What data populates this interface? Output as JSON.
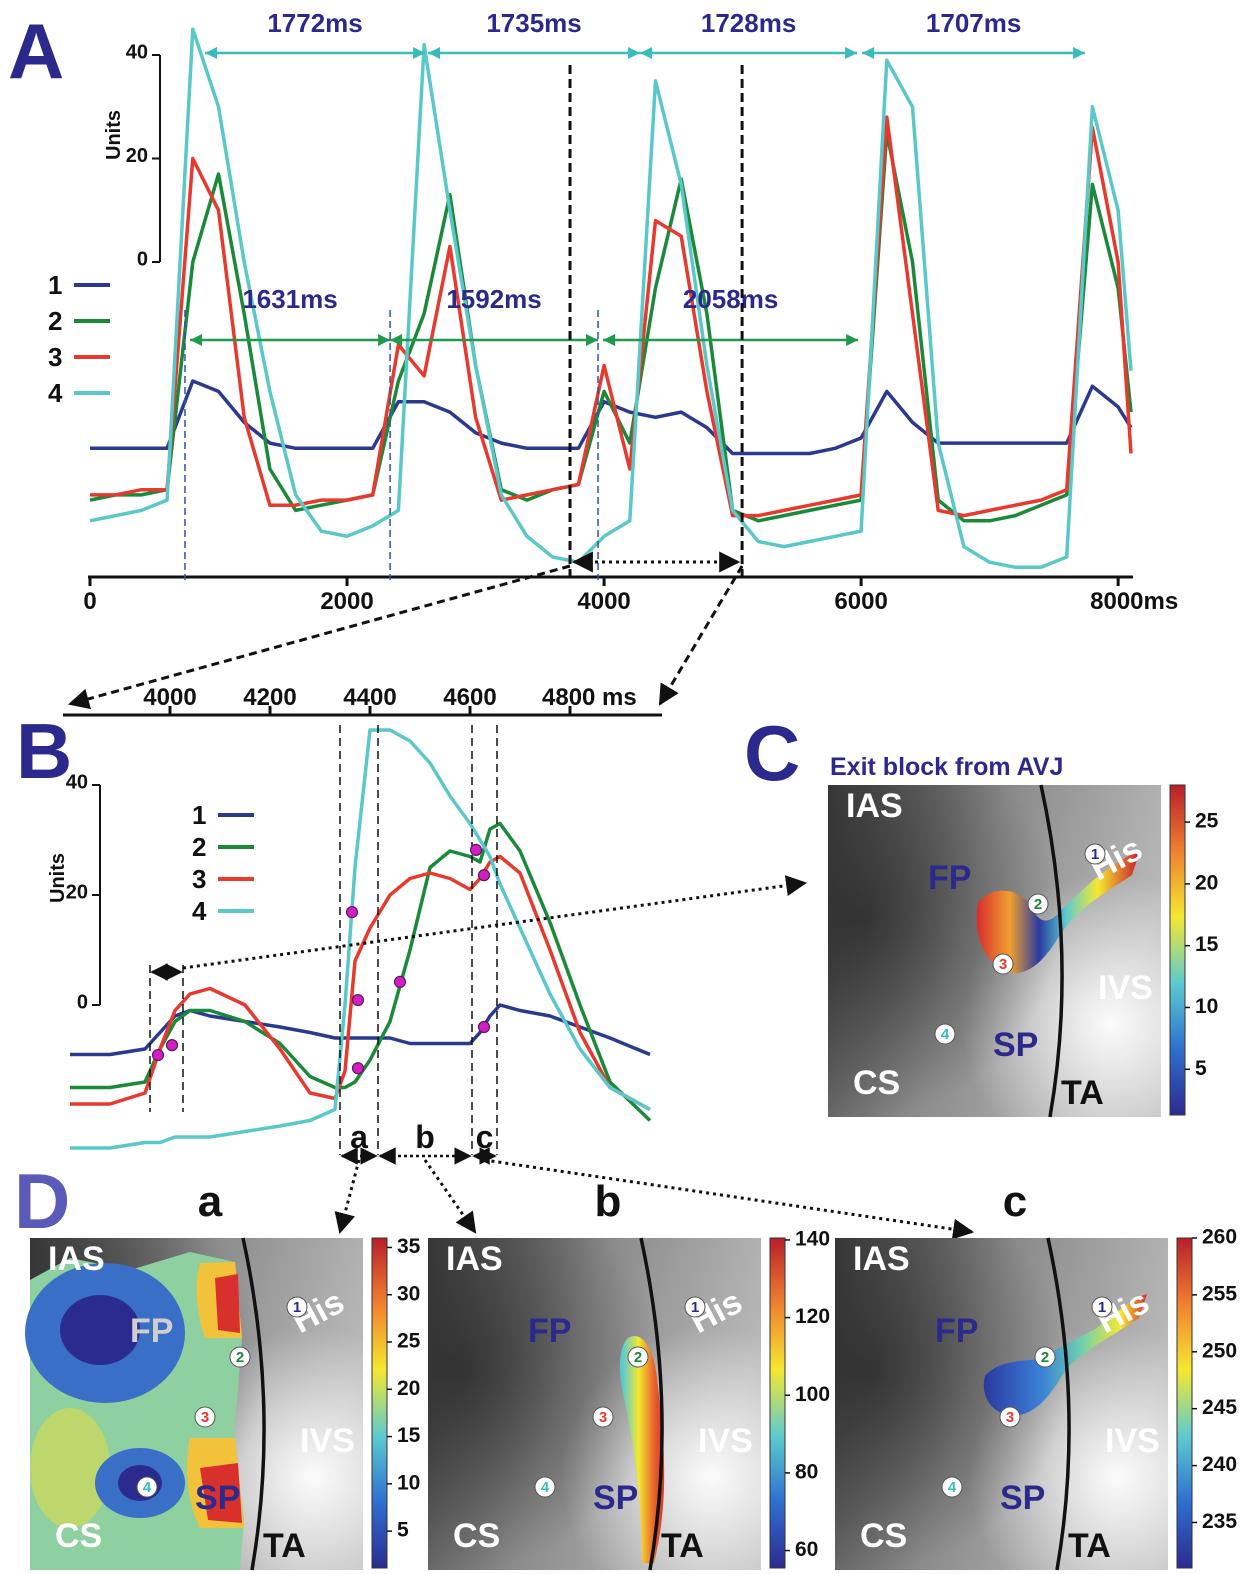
{
  "panel_letters": [
    "A",
    "B",
    "C",
    "D"
  ],
  "chart_data": [
    {
      "type": "line",
      "y_label": "Units",
      "x": [
        0,
        200,
        400,
        600,
        800,
        1000,
        1200,
        1400,
        1600,
        1800,
        2000,
        2200,
        2400,
        2600,
        2800,
        3000,
        3200,
        3400,
        3600,
        3800,
        4000,
        4200,
        4400,
        4600,
        4800,
        5000,
        5200,
        5400,
        5600,
        5800,
        6000,
        6200,
        6400,
        6600,
        6800,
        7000,
        7200,
        7400,
        7600,
        7800,
        8000,
        8100
      ],
      "series": [
        {
          "name": "1",
          "color": "#2b3a8f",
          "values": [
            -36,
            -36,
            -36,
            -36,
            -23,
            -25,
            -31,
            -35,
            -36,
            -36,
            -36,
            -36,
            -27,
            -27,
            -29,
            -33,
            -35,
            -36,
            -36,
            -36,
            -27,
            -29,
            -30,
            -29,
            -32,
            -37,
            -37,
            -37,
            -37,
            -36,
            -34,
            -25,
            -31,
            -35,
            -35,
            -35,
            -35,
            -35,
            -35,
            -24,
            -28,
            -32
          ]
        },
        {
          "name": "2",
          "color": "#1a8a3a",
          "values": [
            -46,
            -45,
            -45,
            -44,
            0,
            17,
            -10,
            -40,
            -48,
            -47,
            -46,
            -45,
            -23,
            -10,
            13,
            -20,
            -44,
            -46,
            -44,
            -43,
            -25,
            -35,
            -5,
            16,
            -10,
            -48,
            -50,
            -49,
            -48,
            -47,
            -46,
            25,
            0,
            -46,
            -50,
            -50,
            -49,
            -47,
            -45,
            15,
            -5,
            -29
          ]
        },
        {
          "name": "3",
          "color": "#e8392f",
          "values": [
            -45,
            -45,
            -44,
            -44,
            20,
            10,
            -30,
            -47,
            -47,
            -46,
            -46,
            -45,
            -16,
            -22,
            3,
            -30,
            -46,
            -45,
            -44,
            -43,
            -20,
            -40,
            8,
            5,
            -25,
            -49,
            -49,
            -48,
            -47,
            -46,
            -45,
            28,
            -10,
            -48,
            -49,
            -48,
            -47,
            -46,
            -44,
            26,
            0,
            -37
          ]
        },
        {
          "name": "4",
          "color": "#5ac8c8",
          "values": [
            -50,
            -49,
            -48,
            -46,
            45,
            30,
            0,
            -25,
            -45,
            -52,
            -53,
            -51,
            -48,
            42,
            10,
            -20,
            -45,
            -53,
            -57,
            -58,
            -53,
            -50,
            35,
            15,
            -20,
            -48,
            -54,
            -55,
            -54,
            -53,
            -52,
            39,
            30,
            -35,
            -55,
            -58,
            -59,
            -59,
            -57,
            30,
            10,
            -21
          ]
        }
      ],
      "xlim": [
        0,
        8100
      ],
      "ylim": [
        -61,
        48
      ],
      "xticks": [
        0,
        2000,
        4000,
        6000,
        {
          "value": 8000,
          "label": "8000ms"
        }
      ],
      "yticks": [
        0,
        20,
        40
      ],
      "intervals": [
        {
          "color": "#3bbcbc",
          "items": [
            {
              "label": "1772ms",
              "start": 895,
              "end": 2607
            },
            {
              "label": "1735ms",
              "start": 2630,
              "end": 4280
            },
            {
              "label": "1728ms",
              "start": 4280,
              "end": 5969
            },
            {
              "label": "1707ms",
              "start": 6008,
              "end": 7743
            }
          ]
        },
        {
          "color": "#1f9a4a",
          "items": [
            {
              "label": "1631ms",
              "start": 778,
              "end": 2335
            },
            {
              "label": "1592ms",
              "start": 2335,
              "end": 3953
            },
            {
              "label": "2058ms",
              "start": 3992,
              "end": 5977
            }
          ]
        }
      ],
      "markers": [
        739,
        2335,
        3953
      ],
      "zoom": [
        3735,
        5074
      ]
    },
    {
      "type": "line",
      "y_label": "Units",
      "x": [
        3800,
        3880,
        3950,
        3980,
        4010,
        4040,
        4080,
        4150,
        4220,
        4280,
        4330,
        4350,
        4370,
        4400,
        4440,
        4480,
        4520,
        4560,
        4600,
        4620,
        4640,
        4660,
        4700,
        4760,
        4820,
        4880,
        4960
      ],
      "series": [
        {
          "name": "1",
          "color": "#2b3a8f",
          "values": [
            -9,
            -9,
            -8,
            -5,
            -2,
            -1,
            -2,
            -3,
            -4,
            -5,
            -6,
            -6,
            -6,
            -6,
            -6,
            -7,
            -7,
            -7,
            -7,
            -5,
            -2,
            0,
            -1,
            -2,
            -4,
            -6,
            -9
          ]
        },
        {
          "name": "2",
          "color": "#1a8a3a",
          "values": [
            -15,
            -15,
            -14,
            -8,
            -3,
            -1,
            -1,
            -3,
            -7,
            -13,
            -15,
            -15,
            -14,
            -10,
            -3,
            10,
            25,
            28,
            27,
            26,
            32,
            33,
            28,
            15,
            0,
            -14,
            -21
          ]
        },
        {
          "name": "3",
          "color": "#e8392f",
          "values": [
            -18,
            -18,
            -16,
            -8,
            -1,
            2,
            3,
            0,
            -8,
            -16,
            -17,
            -12,
            8,
            14,
            20,
            23,
            24,
            23,
            21,
            23,
            26,
            27,
            24,
            10,
            -5,
            -15,
            -19
          ]
        },
        {
          "name": "4",
          "color": "#5ac8c8",
          "values": [
            -26,
            -26,
            -25,
            -25,
            -24,
            -24,
            -24,
            -23,
            -22,
            -21,
            -19,
            0,
            25,
            50,
            50,
            48,
            44,
            38,
            33,
            30,
            27,
            22,
            14,
            2,
            -8,
            -15,
            -19
          ]
        }
      ],
      "xlim": [
        3790,
        4980
      ],
      "ylim": [
        -27,
        52
      ],
      "xticks": [
        4000,
        4200,
        4400,
        4600,
        {
          "value": 4800,
          "label": "4800 ms"
        }
      ],
      "yticks": [
        0,
        20,
        40
      ],
      "markers": [
        3960,
        4026,
        4340,
        4416,
        4604,
        4654
      ],
      "segments": [
        "a",
        "b",
        "c"
      ],
      "activation_points": [
        [
          3976,
          -9.1
        ],
        [
          4004,
          -7.3
        ],
        [
          4364,
          16.9
        ],
        [
          4376,
          0.9
        ],
        [
          4376,
          -11.5
        ],
        [
          4460,
          4.2
        ],
        [
          4612,
          28.2
        ],
        [
          4628,
          23.6
        ],
        [
          4628,
          -4
        ]
      ]
    }
  ],
  "maps": [
    {
      "title": "Exit block from AVJ",
      "labels": [
        "IAS",
        "FP",
        "His",
        "IVS",
        "SP",
        "CS",
        "TA"
      ],
      "sites": [
        "1",
        "2",
        "3",
        "4"
      ],
      "colorbar": {
        "range": [
          1.3,
          28
        ],
        "ticks": [
          5,
          10,
          15,
          20,
          25
        ]
      }
    },
    {
      "title": "a",
      "labels": [
        "IAS",
        "FP",
        "His",
        "IVS",
        "SP",
        "CS",
        "TA"
      ],
      "sites": [
        "1",
        "2",
        "3",
        "4"
      ],
      "colorbar": {
        "range": [
          1.1,
          36
        ],
        "ticks": [
          5,
          10,
          15,
          20,
          25,
          30,
          35
        ]
      }
    },
    {
      "title": "b",
      "labels": [
        "IAS",
        "FP",
        "His",
        "IVS",
        "SP",
        "CS",
        "TA"
      ],
      "sites": [
        "1",
        "2",
        "3",
        "4"
      ],
      "colorbar": {
        "range": [
          55.5,
          140.5
        ],
        "ticks": [
          60,
          80,
          100,
          120,
          140
        ]
      }
    },
    {
      "title": "c",
      "labels": [
        "IAS",
        "FP",
        "His",
        "IVS",
        "SP",
        "CS",
        "TA"
      ],
      "sites": [
        "1",
        "2",
        "3",
        "4"
      ],
      "colorbar": {
        "range": [
          231,
          260
        ],
        "ticks": [
          235,
          240,
          245,
          250,
          255,
          260
        ]
      }
    }
  ]
}
